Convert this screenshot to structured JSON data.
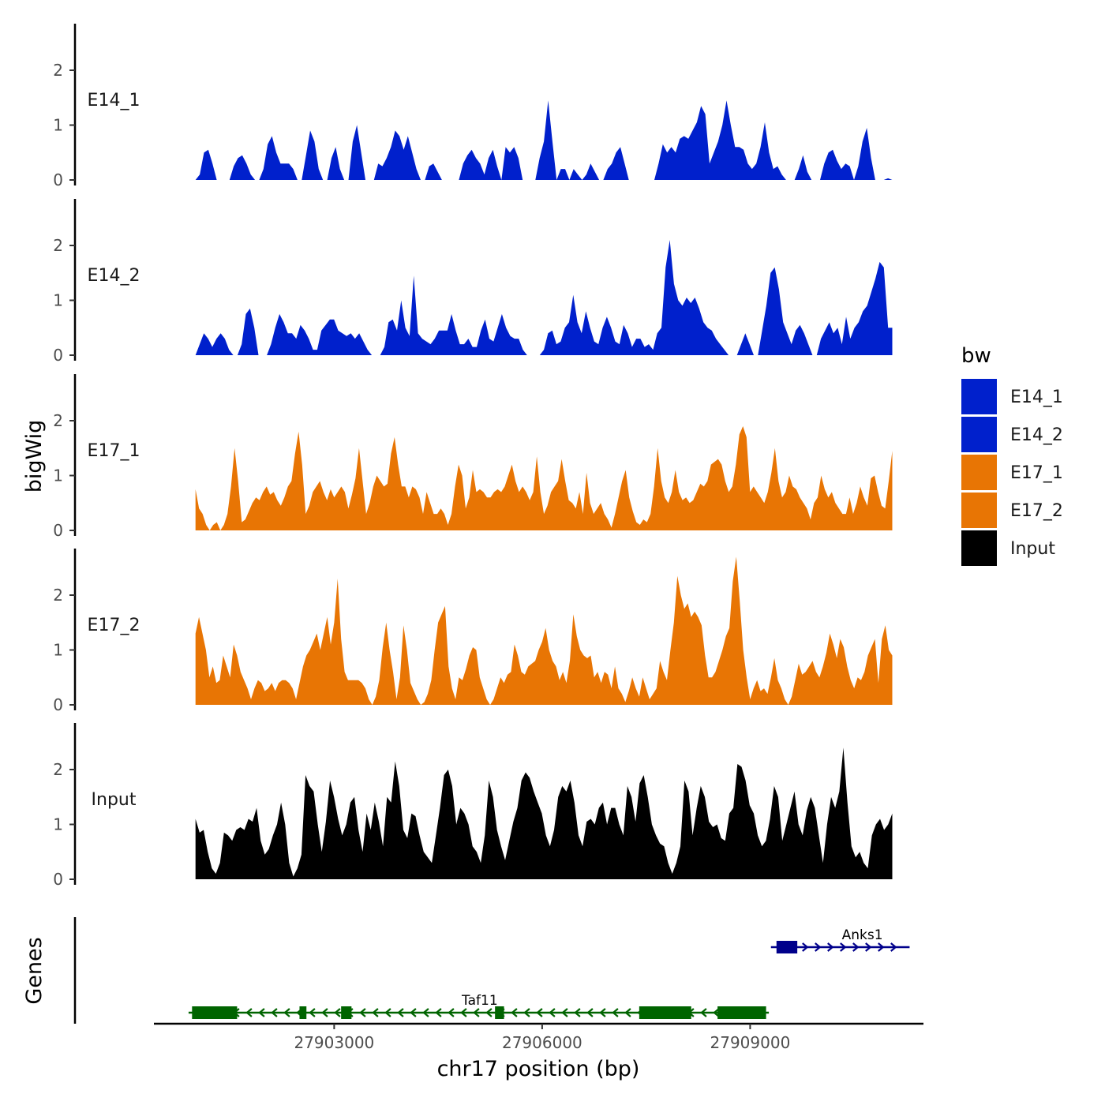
{
  "chart_data": {
    "type": "area",
    "title": "",
    "xlabel": "chr17 position (bp)",
    "ylabel": "bigWig",
    "genes_label": "Genes",
    "xlim": [
      27900400,
      27911500
    ],
    "ylim": [
      0,
      2.85
    ],
    "x_ticks": [
      27903000,
      27906000,
      27909000
    ],
    "x_tick_labels": [
      "27903000",
      "27906000",
      "27909000"
    ],
    "y_ticks": [
      0,
      1,
      2
    ],
    "y_tick_labels": [
      "0",
      "1",
      "2"
    ],
    "legend": {
      "title": "bw",
      "position": "right",
      "entries": [
        {
          "label": "E14_1",
          "color": "#0020cc"
        },
        {
          "label": "E14_2",
          "color": "#0020cc"
        },
        {
          "label": "E17_1",
          "color": "#e87504"
        },
        {
          "label": "E17_2",
          "color": "#e87504"
        },
        {
          "label": "Input",
          "color": "#000000"
        }
      ]
    },
    "series": [
      {
        "name": "E14_1",
        "color": "#0020cc",
        "x_start": 27901000,
        "x_end": 27911050,
        "values": [
          0,
          0.1,
          0.5,
          0.55,
          0.3,
          0,
          0,
          0,
          0,
          0.25,
          0.4,
          0.45,
          0.3,
          0.1,
          0,
          0,
          0.2,
          0.65,
          0.8,
          0.5,
          0.3,
          0.3,
          0.3,
          0.2,
          0,
          0,
          0.45,
          0.9,
          0.7,
          0.2,
          0,
          0,
          0.4,
          0.6,
          0.2,
          0,
          0,
          0.7,
          1.0,
          0.5,
          0,
          0,
          0,
          0.3,
          0.25,
          0.4,
          0.6,
          0.9,
          0.8,
          0.55,
          0.8,
          0.5,
          0.2,
          0,
          0,
          0.25,
          0.3,
          0.15,
          0,
          0,
          0,
          0,
          0,
          0.3,
          0.45,
          0.55,
          0.4,
          0.3,
          0.1,
          0.4,
          0.55,
          0.25,
          0,
          0.6,
          0.5,
          0.6,
          0.4,
          0,
          0,
          0,
          0,
          0.4,
          0.7,
          1.45,
          0.7,
          0,
          0.2,
          0.2,
          0,
          0.2,
          0.1,
          0,
          0.1,
          0.3,
          0.15,
          0,
          0,
          0.2,
          0.3,
          0.5,
          0.6,
          0.3,
          0,
          0,
          0,
          0,
          0,
          0,
          0,
          0.3,
          0.65,
          0.5,
          0.6,
          0.5,
          0.75,
          0.8,
          0.75,
          0.9,
          1.05,
          1.35,
          1.2,
          0.3,
          0.5,
          0.7,
          1.0,
          1.45,
          1.0,
          0.6,
          0.6,
          0.55,
          0.3,
          0.2,
          0.3,
          0.6,
          1.05,
          0.5,
          0.2,
          0.25,
          0.1,
          0,
          0,
          0,
          0.2,
          0.45,
          0.15,
          0,
          0,
          0,
          0.3,
          0.5,
          0.55,
          0.35,
          0.2,
          0.3,
          0.25,
          0,
          0.25,
          0.7,
          0.95,
          0.4,
          0,
          0,
          0,
          0.03,
          0
        ],
        "gap_threshold": 0.015
      },
      {
        "name": "E14_2",
        "color": "#0020cc",
        "x_start": 27901000,
        "x_end": 27911050,
        "values": [
          0,
          0.2,
          0.4,
          0.3,
          0.15,
          0.3,
          0.4,
          0.3,
          0.1,
          0,
          0,
          0.2,
          0.75,
          0.85,
          0.5,
          0,
          0,
          0,
          0.2,
          0.5,
          0.75,
          0.6,
          0.4,
          0.4,
          0.3,
          0.55,
          0.45,
          0.3,
          0.1,
          0.1,
          0.45,
          0.55,
          0.65,
          0.65,
          0.45,
          0.4,
          0.35,
          0.4,
          0.3,
          0.4,
          0.25,
          0.1,
          0,
          0,
          0,
          0.15,
          0.6,
          0.65,
          0.45,
          1.0,
          0.5,
          0.35,
          1.45,
          0.4,
          0.3,
          0.25,
          0.2,
          0.3,
          0.45,
          0.45,
          0.45,
          0.75,
          0.45,
          0.2,
          0.2,
          0.3,
          0.15,
          0.15,
          0.45,
          0.65,
          0.3,
          0.25,
          0.5,
          0.75,
          0.5,
          0.35,
          0.3,
          0.3,
          0.1,
          0,
          0,
          0,
          0,
          0.1,
          0.4,
          0.45,
          0.2,
          0.25,
          0.5,
          0.6,
          1.1,
          0.6,
          0.4,
          0.8,
          0.5,
          0.25,
          0.2,
          0.5,
          0.7,
          0.5,
          0.25,
          0.2,
          0.55,
          0.4,
          0.15,
          0.3,
          0.3,
          0.15,
          0.2,
          0.1,
          0.4,
          0.5,
          1.6,
          2.1,
          1.3,
          1.0,
          0.9,
          1.05,
          0.95,
          1.05,
          0.85,
          0.6,
          0.5,
          0.45,
          0.3,
          0.2,
          0.1,
          0,
          0,
          0,
          0.2,
          0.4,
          0.2,
          0,
          0,
          0.45,
          0.9,
          1.5,
          1.6,
          1.2,
          0.6,
          0.4,
          0.2,
          0.45,
          0.55,
          0.4,
          0.2,
          0,
          0,
          0.3,
          0.45,
          0.6,
          0.4,
          0.5,
          0.2,
          0.7,
          0.3,
          0.5,
          0.6,
          0.8,
          0.9,
          1.15,
          1.4,
          1.7,
          1.6,
          0.5,
          0.5
        ],
        "gap_threshold": 0.015
      },
      {
        "name": "E17_1",
        "color": "#e87504",
        "x_start": 27901000,
        "x_end": 27911050,
        "values": [
          0.75,
          0.4,
          0.3,
          0.1,
          0,
          0.1,
          0.15,
          0,
          0.1,
          0.3,
          0.8,
          1.5,
          0.9,
          0.15,
          0.2,
          0.35,
          0.5,
          0.6,
          0.55,
          0.7,
          0.8,
          0.65,
          0.7,
          0.55,
          0.45,
          0.6,
          0.8,
          0.9,
          1.4,
          1.8,
          1.2,
          0.3,
          0.45,
          0.7,
          0.8,
          0.9,
          0.7,
          0.55,
          0.75,
          0.6,
          0.7,
          0.8,
          0.7,
          0.4,
          0.65,
          0.95,
          1.5,
          0.9,
          0.3,
          0.5,
          0.8,
          1.0,
          0.9,
          0.8,
          0.85,
          1.4,
          1.7,
          1.2,
          0.8,
          0.8,
          0.6,
          0.8,
          0.75,
          0.6,
          0.3,
          0.7,
          0.5,
          0.3,
          0.3,
          0.4,
          0.3,
          0.1,
          0.3,
          0.8,
          1.2,
          1.0,
          0.4,
          0.6,
          1.1,
          0.7,
          0.75,
          0.7,
          0.6,
          0.6,
          0.7,
          0.75,
          0.7,
          0.8,
          1.0,
          1.2,
          0.9,
          0.7,
          0.8,
          0.7,
          0.55,
          0.7,
          1.35,
          0.7,
          0.3,
          0.45,
          0.7,
          0.8,
          0.9,
          1.3,
          0.9,
          0.55,
          0.5,
          0.4,
          0.7,
          0.3,
          1.05,
          0.5,
          0.3,
          0.4,
          0.5,
          0.3,
          0.2,
          0.05,
          0.3,
          0.6,
          0.9,
          1.1,
          0.6,
          0.35,
          0.15,
          0.1,
          0.2,
          0.15,
          0.3,
          0.8,
          1.5,
          0.9,
          0.6,
          0.5,
          0.7,
          1.1,
          0.7,
          0.55,
          0.6,
          0.5,
          0.55,
          0.7,
          0.85,
          0.8,
          0.9,
          1.2,
          1.25,
          1.3,
          1.2,
          0.9,
          0.7,
          0.8,
          1.2,
          1.75,
          1.9,
          1.7,
          0.7,
          0.8,
          0.7,
          0.6,
          0.5,
          0.7,
          1.05,
          1.5,
          0.9,
          0.6,
          0.7,
          1.0,
          0.8,
          0.75,
          0.6,
          0.5,
          0.4,
          0.2,
          0.5,
          0.6,
          1.0,
          0.75,
          0.6,
          0.7,
          0.5,
          0.4,
          0.3,
          0.3,
          0.6,
          0.3,
          0.5,
          0.8,
          0.6,
          0.45,
          0.95,
          1.0,
          0.7,
          0.45,
          0.4,
          0.9,
          1.45
        ],
        "gap_threshold": -1
      },
      {
        "name": "E17_2",
        "color": "#e87504",
        "x_start": 27901000,
        "x_end": 27911050,
        "values": [
          1.3,
          1.6,
          1.3,
          1.0,
          0.5,
          0.7,
          0.4,
          0.45,
          0.9,
          0.7,
          0.5,
          1.1,
          0.9,
          0.6,
          0.45,
          0.3,
          0.1,
          0.3,
          0.45,
          0.4,
          0.25,
          0.3,
          0.4,
          0.25,
          0.4,
          0.45,
          0.45,
          0.4,
          0.3,
          0.1,
          0.4,
          0.7,
          0.9,
          1.0,
          1.15,
          1.3,
          1.0,
          1.3,
          1.6,
          1.1,
          1.5,
          2.3,
          1.2,
          0.6,
          0.45,
          0.45,
          0.45,
          0.45,
          0.4,
          0.3,
          0.1,
          0,
          0.15,
          0.45,
          1.05,
          1.5,
          1.0,
          0.6,
          0.1,
          0.5,
          1.45,
          1.0,
          0.4,
          0.25,
          0.1,
          0,
          0.05,
          0.2,
          0.45,
          1.0,
          1.5,
          1.65,
          1.8,
          0.7,
          0.3,
          0.1,
          0.5,
          0.45,
          0.65,
          0.9,
          1.05,
          1.0,
          0.5,
          0.3,
          0.1,
          0,
          0.1,
          0.3,
          0.5,
          0.4,
          0.55,
          0.6,
          1.1,
          0.9,
          0.6,
          0.55,
          0.7,
          0.75,
          0.8,
          1.0,
          1.15,
          1.4,
          1.0,
          0.8,
          0.7,
          0.45,
          0.6,
          0.4,
          0.8,
          1.65,
          1.25,
          1.0,
          0.9,
          0.85,
          0.9,
          0.5,
          0.6,
          0.4,
          0.6,
          0.55,
          0.3,
          0.7,
          0.3,
          0.2,
          0.05,
          0.25,
          0.5,
          0.3,
          0.15,
          0.5,
          0.3,
          0.1,
          0.2,
          0.3,
          0.8,
          0.6,
          0.45,
          1.0,
          1.5,
          2.35,
          2.0,
          1.75,
          1.85,
          1.6,
          1.7,
          1.6,
          1.45,
          0.9,
          0.5,
          0.5,
          0.6,
          0.8,
          1.0,
          1.25,
          1.4,
          2.25,
          2.7,
          1.9,
          1.0,
          0.5,
          0.1,
          0.3,
          0.45,
          0.25,
          0.3,
          0.2,
          0.5,
          0.85,
          0.45,
          0.3,
          0.1,
          0,
          0.15,
          0.45,
          0.75,
          0.55,
          0.6,
          0.7,
          0.8,
          0.6,
          0.5,
          0.7,
          0.95,
          1.3,
          1.1,
          0.85,
          1.2,
          1.05,
          0.7,
          0.45,
          0.3,
          0.5,
          0.45,
          0.6,
          0.9,
          1.05,
          1.2,
          0.4,
          1.2,
          1.45,
          1.0,
          0.9
        ],
        "gap_threshold": -1
      },
      {
        "name": "Input",
        "color": "#000000",
        "x_start": 27901000,
        "x_end": 27911050,
        "values": [
          1.1,
          0.85,
          0.9,
          0.5,
          0.2,
          0.1,
          0.3,
          0.85,
          0.8,
          0.7,
          0.9,
          0.95,
          0.9,
          1.1,
          1.05,
          1.3,
          0.7,
          0.45,
          0.55,
          0.8,
          1.0,
          1.4,
          1.0,
          0.3,
          0.05,
          0.2,
          0.45,
          1.9,
          1.7,
          1.6,
          1.0,
          0.5,
          1.05,
          1.8,
          1.5,
          1.1,
          0.8,
          1.0,
          1.4,
          1.5,
          0.9,
          0.5,
          1.2,
          0.9,
          1.4,
          1.05,
          0.6,
          1.5,
          1.4,
          2.15,
          1.7,
          0.9,
          0.75,
          1.2,
          1.15,
          0.8,
          0.5,
          0.4,
          0.3,
          0.8,
          1.3,
          1.9,
          2.0,
          1.7,
          1.0,
          1.3,
          1.2,
          1.0,
          0.6,
          0.5,
          0.3,
          0.8,
          1.8,
          1.5,
          0.9,
          0.6,
          0.35,
          0.7,
          1.05,
          1.3,
          1.8,
          1.95,
          1.85,
          1.6,
          1.4,
          1.2,
          0.8,
          0.6,
          0.9,
          1.5,
          1.7,
          1.6,
          1.8,
          1.4,
          0.8,
          0.6,
          1.05,
          1.1,
          1.0,
          1.3,
          1.4,
          1.0,
          1.3,
          1.3,
          1.0,
          0.8,
          1.7,
          1.5,
          1.05,
          1.75,
          1.9,
          1.5,
          1.0,
          0.8,
          0.65,
          0.6,
          0.3,
          0.1,
          0.3,
          0.6,
          1.8,
          1.6,
          0.8,
          1.3,
          1.7,
          1.5,
          1.05,
          0.95,
          1.0,
          0.75,
          0.7,
          1.2,
          1.3,
          2.1,
          2.05,
          1.8,
          1.35,
          1.2,
          0.8,
          0.6,
          0.7,
          1.1,
          1.7,
          1.5,
          0.7,
          1.0,
          1.3,
          1.6,
          1.0,
          0.8,
          1.25,
          1.5,
          1.3,
          0.8,
          0.3,
          1.0,
          1.5,
          1.3,
          1.6,
          2.4,
          1.4,
          0.6,
          0.4,
          0.5,
          0.3,
          0.2,
          0.8,
          1.0,
          1.1,
          0.9,
          1.0,
          1.2
        ],
        "gap_threshold": -1
      }
    ],
    "genes": [
      {
        "name": "Anks1",
        "strand": "+",
        "color": "#00008b",
        "start": 27909300,
        "end": 27911300,
        "exons": [
          [
            27909380,
            27909680
          ]
        ]
      },
      {
        "name": "Taf11",
        "strand": "-",
        "color": "#006400",
        "start": 27900900,
        "end": 27909270,
        "exons": [
          [
            27900950,
            27901600
          ],
          [
            27902500,
            27902600
          ],
          [
            27903100,
            27903250
          ],
          [
            27905320,
            27905450
          ],
          [
            27907400,
            27908150
          ],
          [
            27908530,
            27909230
          ]
        ]
      }
    ]
  }
}
